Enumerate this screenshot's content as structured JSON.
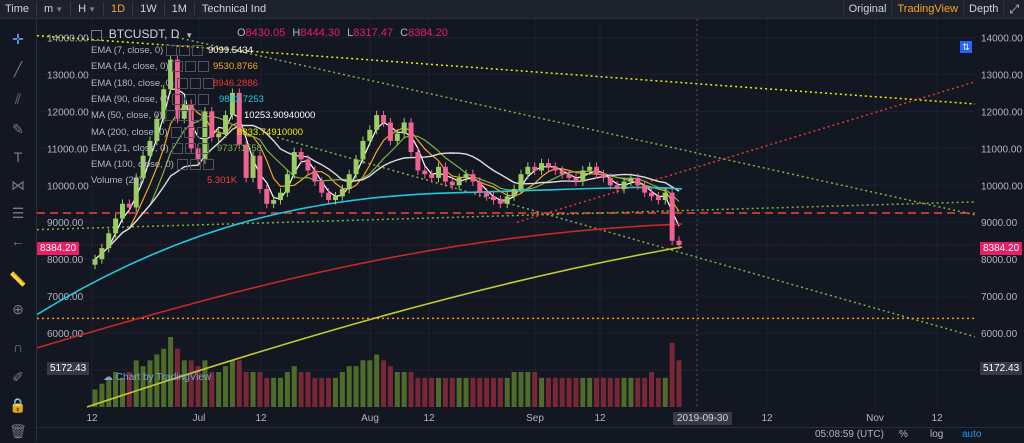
{
  "toolbar": {
    "items": [
      {
        "label": "Time"
      },
      {
        "label": "m",
        "dropdown": true
      },
      {
        "label": "H",
        "dropdown": true
      },
      {
        "label": "1D",
        "active": true
      },
      {
        "label": "1W"
      },
      {
        "label": "1M"
      },
      {
        "label": "Technical Ind"
      }
    ],
    "right": [
      {
        "label": "Original"
      },
      {
        "label": "TradingView",
        "active": true
      },
      {
        "label": "Depth"
      }
    ]
  },
  "left_tools": [
    "crosshair-icon",
    "trend-line-icon",
    "pitchfork-icon",
    "brush-icon",
    "text-icon",
    "pattern-icon",
    "fib-icon",
    "back-arrow-icon",
    "ruler-icon",
    "zoom-in-icon",
    "magnet-icon",
    "lock-drawing-icon",
    "lock-icon"
  ],
  "legend": {
    "symbol": "BTCUSDT, D",
    "open_label": "O",
    "open": "8430.05",
    "high_label": "H",
    "high": "8444.30",
    "low_label": "L",
    "low": "8317.47",
    "close_label": "C",
    "close": "8384.20",
    "indicators": [
      {
        "name": "EMA (7, close, 0)",
        "value": "9099.5434",
        "color": "#ffffff"
      },
      {
        "name": "EMA (14, close, 0)",
        "value": "9530.8766",
        "color": "#f5a623"
      },
      {
        "name": "EMA (180, close, 0)",
        "value": "8946.2886",
        "color": "#e53935"
      },
      {
        "name": "EMA (90, close, 0)",
        "value": "9893.7253",
        "color": "#26c6da"
      },
      {
        "name": "MA (50, close, 0)",
        "value": "10253.90940000",
        "color": "#ffffff"
      },
      {
        "name": "MA (200, close, 0)",
        "value": "8333.74910000",
        "color": "#eeee00"
      },
      {
        "name": "EMA (21, close, 0)",
        "value": "9737.1558",
        "color": "#7cb342"
      },
      {
        "name": "EMA (100, close, 0)",
        "value": "",
        "color": "#ffffff"
      },
      {
        "name": "Volume (20)",
        "value": "5.301K",
        "color": "#f44336"
      }
    ]
  },
  "watermark": "Chart by TradingView",
  "price_axis": {
    "ticks": [
      "14000.00",
      "13000.00",
      "12000.00",
      "11000.00",
      "10000.00",
      "9000.00",
      "8000.00",
      "7000.00",
      "6000.00",
      "5000.00"
    ],
    "last_price": "8384.20",
    "volume_label": "5172.43"
  },
  "time_axis": {
    "ticks": [
      "12",
      "Jul",
      "12",
      "Aug",
      "12",
      "Sep",
      "12",
      "12",
      "Nov",
      "12"
    ],
    "cursor_date": "2019-09-30"
  },
  "bottom_bar": {
    "time": "05:08:59 (UTC)",
    "percent": "%",
    "log": "log",
    "auto": "auto"
  },
  "colors": {
    "up": "#26a69a",
    "down": "#ef5350",
    "accent": "#f5a623",
    "last_price": "#e91e63"
  },
  "chart_data": {
    "type": "candlestick",
    "symbol": "BTCUSDT",
    "interval": "D",
    "y_range": [
      4000,
      14500
    ],
    "closes_approx": [
      8000,
      8300,
      8700,
      9100,
      9500,
      9400,
      10200,
      10800,
      11200,
      11800,
      12600,
      13400,
      11800,
      12200,
      11000,
      10700,
      12000,
      11300,
      11400,
      11900,
      12500,
      11100,
      10200,
      10800,
      9900,
      9500,
      9600,
      9800,
      10300,
      10900,
      10700,
      10400,
      10100,
      9800,
      9600,
      9700,
      9900,
      10300,
      10700,
      11200,
      11500,
      11900,
      11700,
      11200,
      11400,
      11700,
      10900,
      10400,
      10300,
      10200,
      10500,
      10100,
      10000,
      10200,
      10300,
      10100,
      9800,
      9700,
      9600,
      9500,
      9700,
      9900,
      10300,
      10500,
      10400,
      10600,
      10500,
      10400,
      10300,
      10200,
      10100,
      10400,
      10500,
      10300,
      10200,
      10000,
      9900,
      10100,
      10200,
      10000,
      9800,
      9700,
      9600,
      9800,
      8500,
      8384
    ],
    "volumes_approx": [
      1.5,
      2,
      2.5,
      3,
      2.5,
      3,
      4,
      3.5,
      4,
      4.5,
      5,
      6,
      5,
      4,
      4,
      3.5,
      4,
      3,
      3,
      3.5,
      4,
      4,
      3,
      3,
      3,
      2.5,
      2.5,
      2.5,
      3,
      3.5,
      3,
      3,
      2.5,
      2.5,
      2.5,
      2.5,
      3,
      3.5,
      3.5,
      4,
      4,
      4.5,
      4,
      3.5,
      3,
      3,
      3,
      2.5,
      2.5,
      2.5,
      2.5,
      2.5,
      2.5,
      2.5,
      2.5,
      2.5,
      2.5,
      2.5,
      2.5,
      2.5,
      2.5,
      3,
      3,
      3,
      3,
      2.5,
      2.5,
      2.5,
      2.5,
      2.5,
      2.5,
      2.5,
      2.5,
      2.5,
      2.5,
      2.5,
      2.5,
      2.5,
      2.5,
      2.5,
      2.5,
      3,
      2.5,
      2.5,
      5.5,
      4
    ],
    "horizontal_lines": [
      {
        "price": 9250,
        "color": "#f44336",
        "style": "dashed"
      },
      {
        "price": 6400,
        "color": "#ff9800",
        "style": "dotted"
      }
    ]
  }
}
